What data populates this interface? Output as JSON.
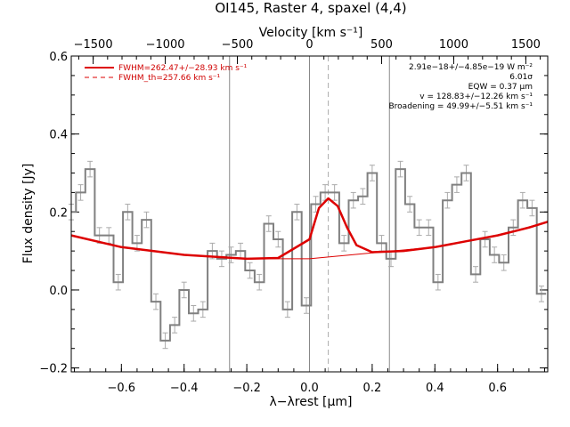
{
  "chart_data": {
    "type": "line",
    "title": "OI145, Raster 4, spaxel (4,4)",
    "xlabel": "λ−λrest [μm]",
    "ylabel": "Flux density [Jy]",
    "top_xlabel": "Velocity [km s⁻¹]",
    "xlim": [
      -0.76,
      0.76
    ],
    "ylim": [
      -0.21,
      0.6
    ],
    "top_xlim": [
      -1652,
      1652
    ],
    "x_ticks": [
      -0.6,
      -0.4,
      -0.2,
      0.0,
      0.2,
      0.4,
      0.6
    ],
    "x_tick_labels": [
      "−0.6",
      "−0.4",
      "−0.2",
      "0.0",
      "0.2",
      "0.4",
      "0.6"
    ],
    "y_ticks": [
      -0.2,
      0.0,
      0.2,
      0.4,
      0.6
    ],
    "y_tick_labels": [
      "−0.2",
      "0.0",
      "0.2",
      "0.4",
      "0.6"
    ],
    "top_ticks": [
      -1500,
      -1000,
      -500,
      0,
      500,
      1000,
      1500
    ],
    "top_tick_labels": [
      "−1500",
      "−1000",
      "−500",
      "0",
      "500",
      "1000",
      "1500"
    ],
    "vertical_lines": [
      -0.255,
      0.0,
      0.255
    ],
    "dashed_vertical_line": 0.06,
    "grid": false,
    "legend_position": "top-left",
    "legend": [
      {
        "label": "FWHM=262.47+/−28.93 km s⁻¹",
        "style": "solid",
        "color": "#dd0000"
      },
      {
        "label": "FWHM_th=257.66 km s⁻¹",
        "style": "dashed",
        "color": "#dd0000"
      }
    ],
    "annotations": [
      "2.91e−18+/−4.85e−19 W m⁻²",
      "6.01σ",
      "EQW = 0.37 μm",
      "v = 128.83+/−12.26 km s⁻¹",
      "Broadening = 49.99+/−5.51 km s⁻¹"
    ],
    "spectrum_step": 0.03,
    "spectrum": {
      "name": "",
      "x": [
        -0.76,
        -0.73,
        -0.7,
        -0.67,
        -0.64,
        -0.61,
        -0.58,
        -0.55,
        -0.52,
        -0.49,
        -0.46,
        -0.43,
        -0.4,
        -0.37,
        -0.34,
        -0.31,
        -0.28,
        -0.25,
        -0.22,
        -0.19,
        -0.16,
        -0.13,
        -0.1,
        -0.07,
        -0.04,
        -0.01,
        0.02,
        0.05,
        0.08,
        0.11,
        0.14,
        0.17,
        0.2,
        0.23,
        0.26,
        0.29,
        0.32,
        0.35,
        0.38,
        0.41,
        0.44,
        0.47,
        0.5,
        0.53,
        0.56,
        0.59,
        0.62,
        0.65,
        0.68,
        0.71,
        0.74
      ],
      "y": [
        0.2,
        0.25,
        0.31,
        0.14,
        0.14,
        0.02,
        0.2,
        0.12,
        0.18,
        -0.03,
        -0.13,
        -0.09,
        0.0,
        -0.06,
        -0.05,
        0.1,
        0.08,
        0.09,
        0.1,
        0.05,
        0.02,
        0.17,
        0.13,
        -0.05,
        0.2,
        -0.04,
        0.22,
        0.25,
        0.25,
        0.12,
        0.23,
        0.24,
        0.3,
        0.12,
        0.08,
        0.31,
        0.22,
        0.16,
        0.16,
        0.02,
        0.23,
        0.27,
        0.3,
        0.04,
        0.13,
        0.09,
        0.07,
        0.16,
        0.23,
        0.21,
        -0.01
      ],
      "err": [
        0.02,
        0.02,
        0.02,
        0.02,
        0.02,
        0.02,
        0.02,
        0.02,
        0.02,
        0.02,
        0.02,
        0.02,
        0.02,
        0.02,
        0.02,
        0.02,
        0.02,
        0.02,
        0.02,
        0.02,
        0.02,
        0.02,
        0.02,
        0.02,
        0.02,
        0.02,
        0.02,
        0.02,
        0.02,
        0.02,
        0.02,
        0.02,
        0.02,
        0.02,
        0.02,
        0.02,
        0.02,
        0.02,
        0.02,
        0.02,
        0.02,
        0.02,
        0.02,
        0.02,
        0.02,
        0.02,
        0.02,
        0.02,
        0.02,
        0.02,
        0.02
      ]
    },
    "fit_curve": {
      "x": [
        -0.76,
        -0.6,
        -0.4,
        -0.2,
        -0.1,
        0.0,
        0.03,
        0.06,
        0.09,
        0.12,
        0.15,
        0.2,
        0.3,
        0.4,
        0.5,
        0.6,
        0.7,
        0.76
      ],
      "y": [
        0.14,
        0.11,
        0.09,
        0.08,
        0.082,
        0.13,
        0.21,
        0.235,
        0.215,
        0.16,
        0.115,
        0.097,
        0.1,
        0.11,
        0.125,
        0.14,
        0.16,
        0.175
      ]
    },
    "baseline": {
      "x": [
        -0.76,
        -0.6,
        -0.4,
        -0.2,
        0.0,
        0.2,
        0.4,
        0.6,
        0.76
      ],
      "y": [
        0.14,
        0.11,
        0.09,
        0.08,
        0.08,
        0.095,
        0.11,
        0.14,
        0.175
      ]
    }
  }
}
